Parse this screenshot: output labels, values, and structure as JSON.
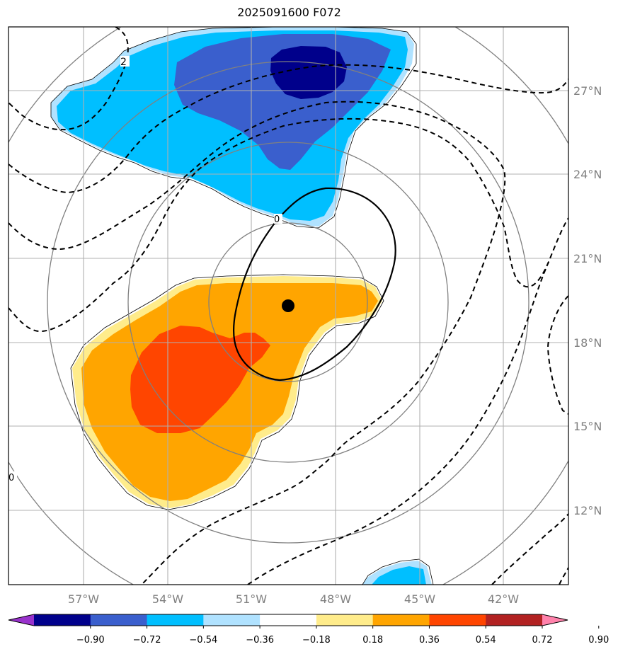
{
  "title": "2025091600 F072",
  "map": {
    "lon_labels": [
      "57°W",
      "54°W",
      "51°W",
      "48°W",
      "45°W",
      "42°W"
    ],
    "lat_labels": [
      "27°N",
      "24°N",
      "21°N",
      "18°N",
      "15°N",
      "12°N"
    ],
    "contour_labels": [
      "2",
      "0",
      "0"
    ],
    "storm_center": {
      "lon": -49.7,
      "lat": 19.3
    }
  },
  "colorbar": {
    "ticks": [
      "−0.90",
      "−0.72",
      "−0.54",
      "−0.36",
      "−0.18",
      "0.18",
      "0.36",
      "0.54",
      "0.72",
      "0.90"
    ],
    "colors": [
      "#9932cc",
      "#00008b",
      "#3a5fcd",
      "#00bfff",
      "#b0e2ff",
      "#ffffff",
      "#ffec8b",
      "#ffa500",
      "#ff4500",
      "#b22222",
      "#ff82ab"
    ]
  },
  "shading_colors": {
    "light_blue": "#b0e2ff",
    "deep_sky_blue": "#00bfff",
    "royal_blue": "#3a5fcd",
    "navy": "#00008b",
    "light_yellow": "#ffec8b",
    "orange": "#ffa500",
    "orange_red": "#ff4500"
  }
}
